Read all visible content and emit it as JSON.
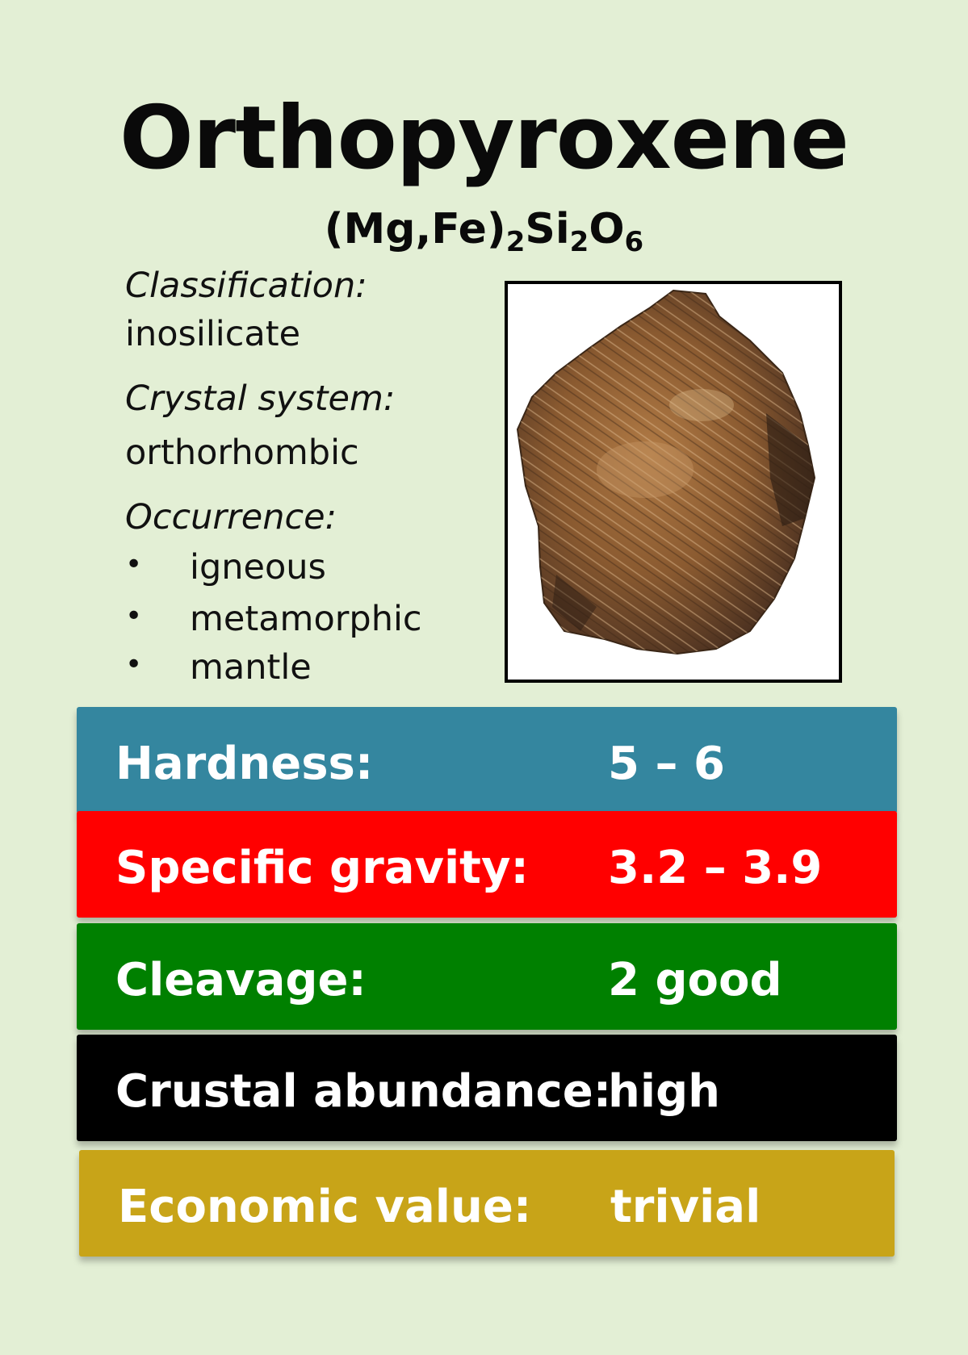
{
  "card": {
    "title": "Orthopyroxene",
    "formula": {
      "part1": "(Mg,Fe)",
      "sub1": "2",
      "part2": "Si",
      "sub2": "2",
      "part3": "O",
      "sub3": "6"
    }
  },
  "info": {
    "classification_label": "Classification:",
    "classification_value": "inosilicate",
    "crystal_system_label": "Crystal system:",
    "crystal_system_value": "orthorhombic",
    "occurrence_label": "Occurrence:",
    "occurrence_items": [
      "igneous",
      "metamorphic",
      "mantle"
    ],
    "bullet": "•"
  },
  "properties": [
    {
      "label": "Hardness:",
      "value": "5 – 6",
      "color": "#34869f"
    },
    {
      "label": "Specific gravity:",
      "value": "3.2 – 3.9",
      "color": "#ff0000"
    },
    {
      "label": "Cleavage:",
      "value": "2 good",
      "color": "#008000"
    },
    {
      "label": "Crustal abundance:",
      "value": "high",
      "color": "#000000"
    },
    {
      "label": "Economic value:",
      "value": "trivial",
      "color": "#c8a418"
    }
  ],
  "colors": {
    "background": "#e3efd5",
    "mineral": "#9a6a3c"
  }
}
